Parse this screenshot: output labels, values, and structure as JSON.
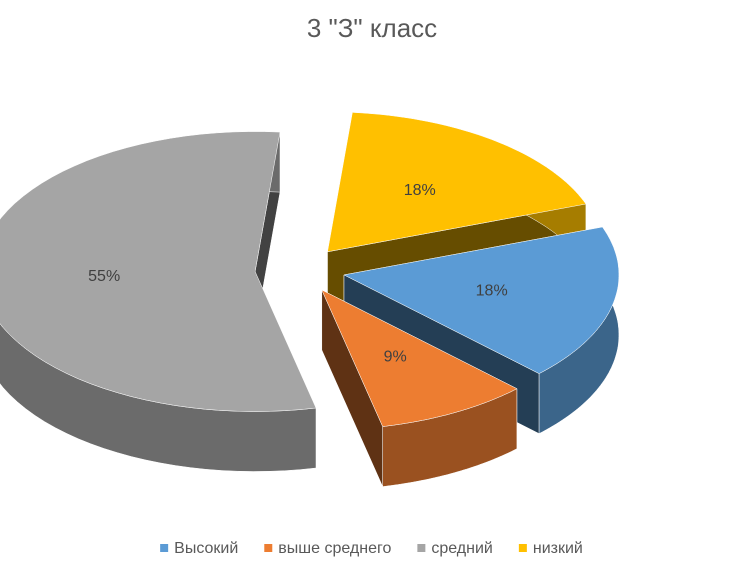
{
  "chart_data": {
    "type": "pie",
    "title": "3 \"З\" класс",
    "categories": [
      "Высокий",
      "выше среднего",
      "средний",
      "низкий"
    ],
    "values": [
      18,
      9,
      55,
      18
    ],
    "value_labels": [
      "18%",
      "9%",
      "55%",
      "18%"
    ],
    "colors": [
      "#5b9bd5",
      "#ed7d31",
      "#a5a5a5",
      "#ffc000"
    ],
    "legend": "bottom"
  }
}
